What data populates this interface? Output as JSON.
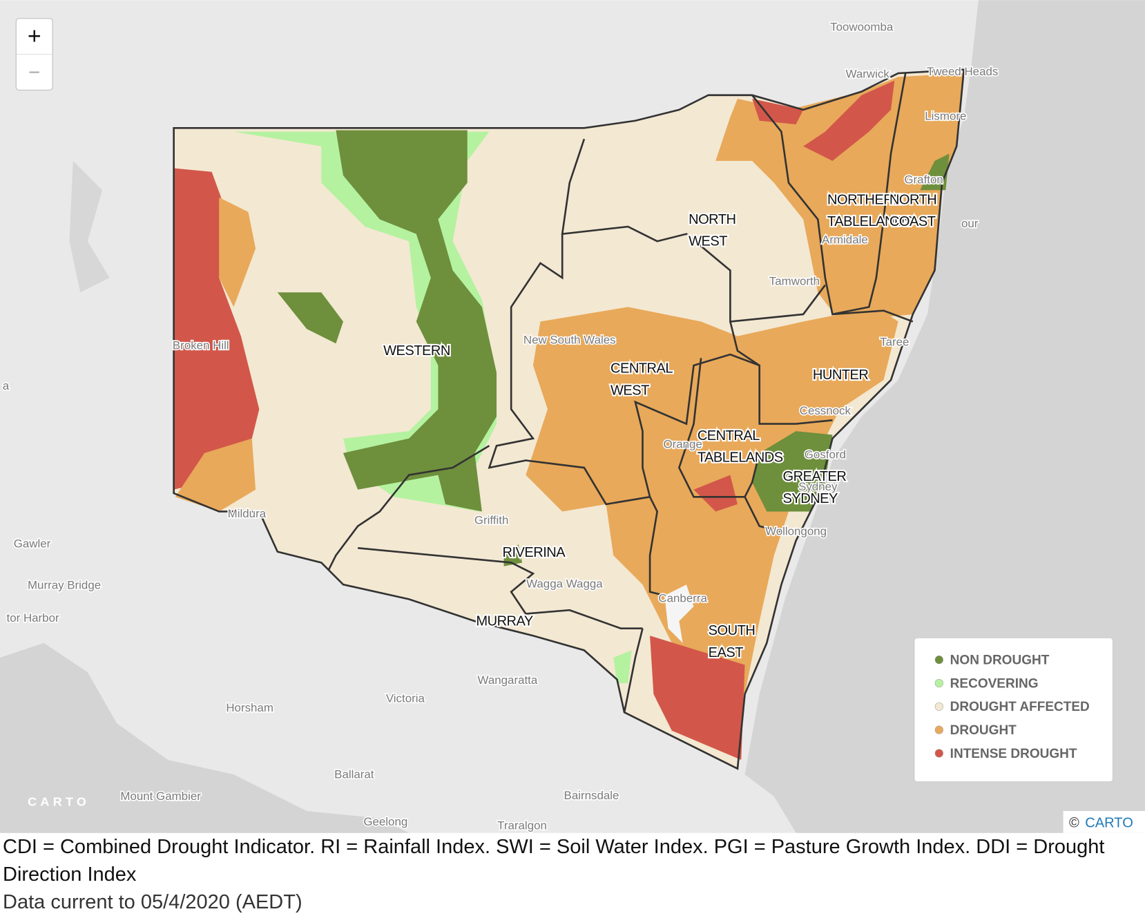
{
  "zoom": {
    "in": "+",
    "out": "−"
  },
  "places": [
    "Toowoomba",
    "Warwick",
    "Tweed Heads",
    "Lismore",
    "Grafton",
    "Armidale",
    "Tamworth",
    "Taree",
    "Cessnock",
    "Gosford",
    "Sydney",
    "Wollongong",
    "Canberra",
    "Orange",
    "Griffith",
    "Wagga Wagga",
    "Broken Hill",
    "Mildura",
    "Gawler",
    "Murray Bridge",
    "tor Harbor",
    "a",
    "Wangaratta",
    "Victoria",
    "Horsham",
    "Ballarat",
    "Mount Gambier",
    "Bairnsdale",
    "Geelong",
    "Traralgon",
    "New South Wales",
    "our"
  ],
  "regions": [
    {
      "lines": [
        "NORTH",
        "WEST"
      ]
    },
    {
      "lines": [
        "NORTHERN",
        "TABLELANDS"
      ]
    },
    {
      "lines": [
        "NORTH",
        "COAST"
      ]
    },
    {
      "lines": [
        "WESTERN"
      ]
    },
    {
      "lines": [
        "CENTRAL",
        "WEST"
      ]
    },
    {
      "lines": [
        "HUNTER"
      ]
    },
    {
      "lines": [
        "CENTRAL",
        "TABLELANDS"
      ]
    },
    {
      "lines": [
        "GREATER",
        "SYDNEY"
      ]
    },
    {
      "lines": [
        "RIVERINA"
      ]
    },
    {
      "lines": [
        "MURRAY"
      ]
    },
    {
      "lines": [
        "SOUTH",
        "EAST"
      ]
    }
  ],
  "legend": [
    {
      "label": "NON DROUGHT",
      "color": "#6e8f3c"
    },
    {
      "label": "RECOVERING",
      "color": "#b4f2a0"
    },
    {
      "label": "DROUGHT AFFECTED",
      "color": "#f3e8d2"
    },
    {
      "label": "DROUGHT",
      "color": "#e8a95a"
    },
    {
      "label": "INTENSE DROUGHT",
      "color": "#d2574a"
    }
  ],
  "logo": "CARTO",
  "attribution": {
    "prefix": "©",
    "link": "CARTO"
  },
  "caption": "CDI = Combined Drought Indicator. RI = Rainfall Index. SWI = Soil Water Index. PGI = Pasture Growth Index. DDI = Drought Direction Index",
  "date_note": "Data current to 05/4/2020 (AEDT)"
}
